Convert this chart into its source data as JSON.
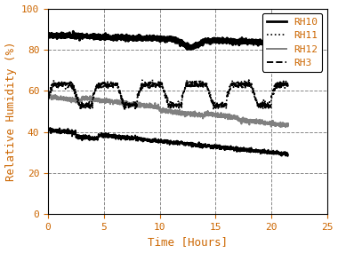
{
  "title": "",
  "xlabel": "Time [Hours]",
  "ylabel": "Relative Humidity (%)",
  "xlim": [
    0,
    25
  ],
  "ylim": [
    0,
    100
  ],
  "xticks": [
    0,
    5,
    10,
    15,
    20,
    25
  ],
  "yticks": [
    0,
    20,
    40,
    60,
    80,
    100
  ],
  "legend_labels": [
    "RH10",
    "RH11",
    "RH12",
    "RH3"
  ],
  "legend_colors": [
    "black",
    "black",
    "gray",
    "black"
  ],
  "legend_styles": [
    "-",
    ":",
    "-",
    "--"
  ],
  "legend_linewidths": [
    2.0,
    1.5,
    1.5,
    1.5
  ],
  "grid_color": "#888888",
  "grid_style": "--",
  "background_color": "#ffffff",
  "text_color": "#cc6600",
  "font_family": "monospace"
}
